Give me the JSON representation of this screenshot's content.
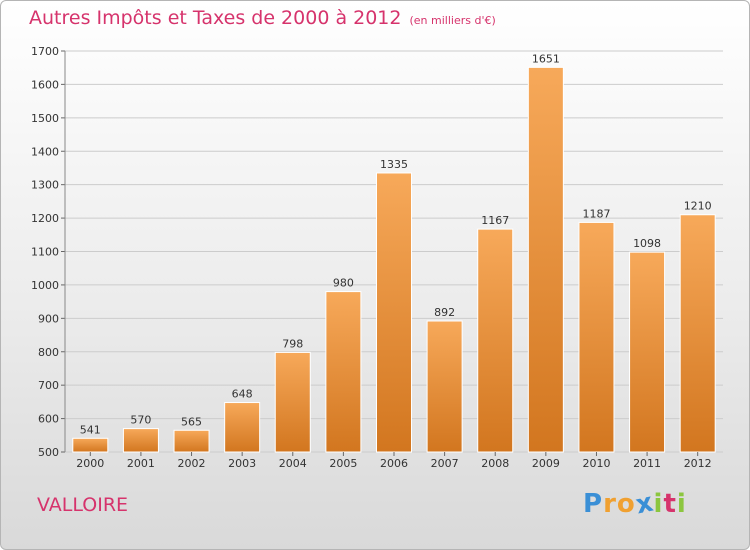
{
  "chart_data": {
    "type": "bar",
    "title": "Autres Impôts et Taxes de 2000 à 2012",
    "subtitle": "(en milliers d'€)",
    "categories": [
      "2000",
      "2001",
      "2002",
      "2003",
      "2004",
      "2005",
      "2006",
      "2007",
      "2008",
      "2009",
      "2010",
      "2011",
      "2012"
    ],
    "values": [
      541,
      570,
      565,
      648,
      798,
      980,
      1335,
      892,
      1167,
      1651,
      1187,
      1098,
      1210
    ],
    "ylim": [
      500,
      1700
    ],
    "yticks": [
      500,
      600,
      700,
      800,
      900,
      1000,
      1100,
      1200,
      1300,
      1400,
      1500,
      1600,
      1700
    ],
    "grid": true,
    "bar_color_top": "#f7a95a",
    "bar_color_bottom": "#d2761f"
  },
  "footer": {
    "place": "VALLOIRE",
    "logo_letters": [
      "P",
      "r",
      "o",
      "x",
      "i",
      "t",
      "i"
    ],
    "logo_colors": [
      "#3a8fd6",
      "#f0a030",
      "#f0a030",
      "#3a8fd6",
      "#8cc63f",
      "#d6336c",
      "#8cc63f"
    ]
  },
  "colors": {
    "title": "#d6336c",
    "grid": "#cccccc",
    "axis_text": "#333333"
  }
}
